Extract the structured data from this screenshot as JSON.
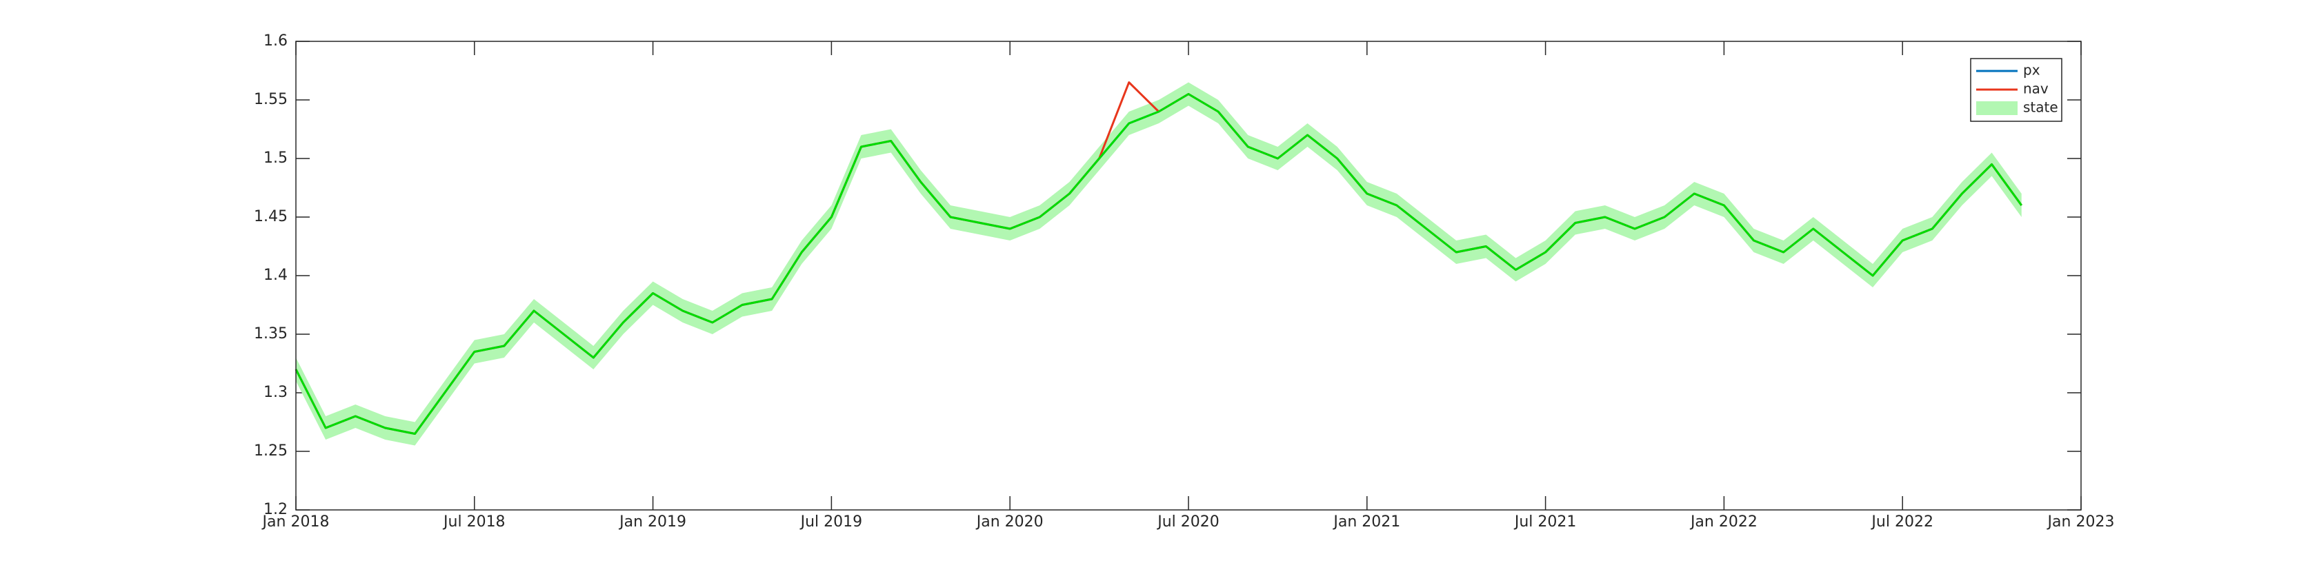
{
  "chart_data": {
    "type": "line",
    "x": [
      "2018-01",
      "2018-02",
      "2018-03",
      "2018-04",
      "2018-05",
      "2018-06",
      "2018-07",
      "2018-08",
      "2018-09",
      "2018-10",
      "2018-11",
      "2018-12",
      "2019-01",
      "2019-02",
      "2019-03",
      "2019-04",
      "2019-05",
      "2019-06",
      "2019-07",
      "2019-08",
      "2019-09",
      "2019-10",
      "2019-11",
      "2019-12",
      "2020-01",
      "2020-02",
      "2020-03",
      "2020-04",
      "2020-05",
      "2020-06",
      "2020-07",
      "2020-08",
      "2020-09",
      "2020-10",
      "2020-11",
      "2020-12",
      "2021-01",
      "2021-02",
      "2021-03",
      "2021-04",
      "2021-05",
      "2021-06",
      "2021-07",
      "2021-08",
      "2021-09",
      "2021-10",
      "2021-11",
      "2021-12",
      "2022-01",
      "2022-02",
      "2022-03",
      "2022-04",
      "2022-05",
      "2022-06",
      "2022-07",
      "2022-08",
      "2022-09",
      "2022-10",
      "2022-11"
    ],
    "series": [
      {
        "name": "px",
        "color": "#0072bd",
        "values": [
          1.32,
          1.27,
          1.28,
          1.27,
          1.265,
          1.3,
          1.335,
          1.34,
          1.37,
          1.35,
          1.33,
          1.36,
          1.385,
          1.37,
          1.36,
          1.375,
          1.38,
          1.42,
          1.45,
          1.51,
          1.515,
          1.48,
          1.45,
          1.445,
          1.44,
          1.45,
          1.47,
          1.5,
          1.53,
          1.54,
          1.555,
          1.54,
          1.51,
          1.5,
          1.52,
          1.5,
          1.47,
          1.46,
          1.44,
          1.42,
          1.425,
          1.405,
          1.42,
          1.445,
          1.45,
          1.44,
          1.45,
          1.47,
          1.46,
          1.43,
          1.42,
          1.44,
          1.42,
          1.4,
          1.43,
          1.44,
          1.47,
          1.495,
          1.46
        ]
      },
      {
        "name": "nav",
        "color": "#e8361c",
        "values": [
          1.32,
          1.27,
          1.28,
          1.27,
          1.265,
          1.3,
          1.335,
          1.34,
          1.37,
          1.35,
          1.33,
          1.36,
          1.385,
          1.37,
          1.36,
          1.375,
          1.38,
          1.42,
          1.45,
          1.51,
          1.515,
          1.48,
          1.45,
          1.445,
          1.44,
          1.45,
          1.47,
          1.5,
          1.565,
          1.54,
          1.555,
          1.54,
          1.51,
          1.5,
          1.52,
          1.5,
          1.47,
          1.46,
          1.44,
          1.42,
          1.425,
          1.405,
          1.42,
          1.445,
          1.45,
          1.44,
          1.45,
          1.47,
          1.46,
          1.43,
          1.42,
          1.44,
          1.42,
          1.4,
          1.43,
          1.44,
          1.47,
          1.495,
          1.46
        ]
      },
      {
        "name": "state",
        "color": "#00dd00",
        "band_color": "#b2f7b2",
        "band": 0.01,
        "values": [
          1.32,
          1.27,
          1.28,
          1.27,
          1.265,
          1.3,
          1.335,
          1.34,
          1.37,
          1.35,
          1.33,
          1.36,
          1.385,
          1.37,
          1.36,
          1.375,
          1.38,
          1.42,
          1.45,
          1.51,
          1.515,
          1.48,
          1.45,
          1.445,
          1.44,
          1.45,
          1.47,
          1.5,
          1.53,
          1.54,
          1.555,
          1.54,
          1.51,
          1.5,
          1.52,
          1.5,
          1.47,
          1.46,
          1.44,
          1.42,
          1.425,
          1.405,
          1.42,
          1.445,
          1.45,
          1.44,
          1.45,
          1.47,
          1.46,
          1.43,
          1.42,
          1.44,
          1.42,
          1.4,
          1.43,
          1.44,
          1.47,
          1.495,
          1.46
        ]
      }
    ],
    "xlim": [
      "2018-01",
      "2023-01"
    ],
    "xticks": [
      {
        "value": "2018-01",
        "label": "Jan 2018"
      },
      {
        "value": "2018-07",
        "label": "Jul 2018"
      },
      {
        "value": "2019-01",
        "label": "Jan 2019"
      },
      {
        "value": "2019-07",
        "label": "Jul 2019"
      },
      {
        "value": "2020-01",
        "label": "Jan 2020"
      },
      {
        "value": "2020-07",
        "label": "Jul 2020"
      },
      {
        "value": "2021-01",
        "label": "Jan 2021"
      },
      {
        "value": "2021-07",
        "label": "Jul 2021"
      },
      {
        "value": "2022-01",
        "label": "Jan 2022"
      },
      {
        "value": "2022-07",
        "label": "Jul 2022"
      },
      {
        "value": "2023-01",
        "label": "Jan 2023"
      }
    ],
    "ylim": [
      1.2,
      1.6
    ],
    "yticks": [
      1.2,
      1.25,
      1.3,
      1.35,
      1.4,
      1.45,
      1.5,
      1.55,
      1.6
    ],
    "grid": false,
    "legend": "northeast"
  }
}
